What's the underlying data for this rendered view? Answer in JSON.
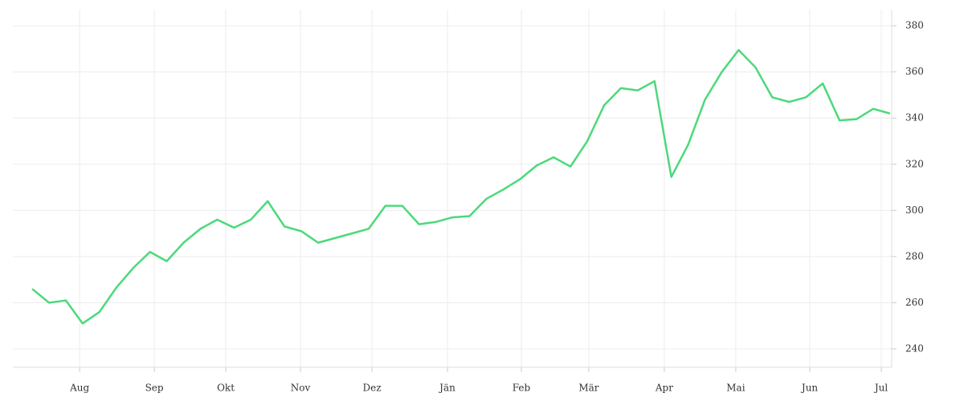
{
  "chart_data": {
    "type": "line",
    "values": [
      266,
      260,
      261,
      251,
      256,
      266.5,
      275,
      282,
      278,
      286,
      292,
      296,
      292.5,
      296,
      304,
      293,
      291,
      286,
      288,
      290,
      292,
      302,
      302,
      294,
      295,
      297,
      297.5,
      305,
      309,
      313.5,
      319.5,
      323,
      319,
      330,
      345.5,
      353,
      352,
      356,
      314.5,
      328.5,
      348,
      360,
      369.5,
      362,
      349,
      347,
      349,
      355,
      339,
      339.5,
      344,
      342
    ],
    "color": "#4cd97b",
    "xlim": [
      -1.15,
      51.1
    ],
    "xticks": [
      {
        "value": 2.82,
        "label": "Aug"
      },
      {
        "value": 7.26,
        "label": "Sep"
      },
      {
        "value": 11.51,
        "label": "Okt"
      },
      {
        "value": 15.95,
        "label": "Nov"
      },
      {
        "value": 20.2,
        "label": "Dez"
      },
      {
        "value": 24.69,
        "label": "Jän"
      },
      {
        "value": 29.08,
        "label": "Feb"
      },
      {
        "value": 33.09,
        "label": "Mär"
      },
      {
        "value": 37.58,
        "label": "Apr"
      },
      {
        "value": 41.83,
        "label": "Mai"
      },
      {
        "value": 46.23,
        "label": "Jun"
      },
      {
        "value": 50.48,
        "label": "Jul"
      }
    ],
    "ylim": [
      232,
      387
    ],
    "yticks": [
      240,
      260,
      280,
      300,
      320,
      340,
      360,
      380
    ],
    "grid": true
  }
}
